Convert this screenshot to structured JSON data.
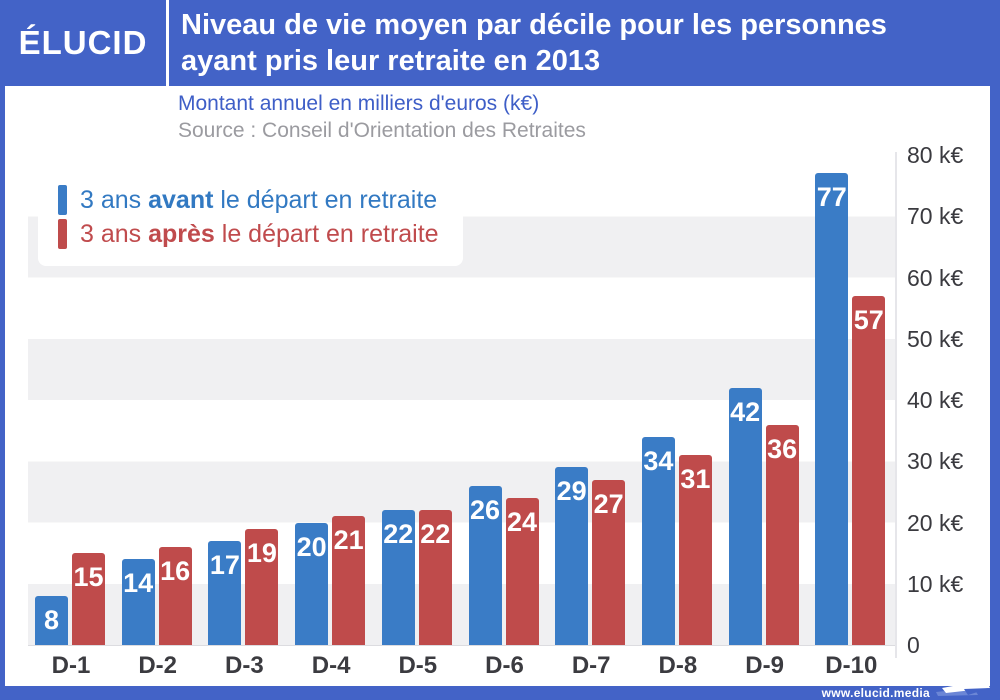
{
  "header": {
    "logo": "ÉLUCID",
    "title_lines": [
      "Niveau de vie moyen par décile pour les personnes",
      "ayant pris leur retraite en 2013"
    ]
  },
  "subtitle": "Montant annuel en milliers d'euros (k€)",
  "source": "Source : Conseil d'Orientation des Retraites",
  "legend": [
    {
      "prefix": "3 ans ",
      "bold": "avant",
      "suffix": " le départ en retraite",
      "marker_color": "#3a7cc6"
    },
    {
      "prefix": "3 ans ",
      "bold": "après",
      "suffix": " le départ en retraite",
      "marker_color": "#bf4b4b"
    }
  ],
  "footer": {
    "website": "www.elucid.media"
  },
  "colors": {
    "frame_blue": "#4363c7",
    "bar_blue": "#3a7cc6",
    "bar_red": "#bf4b4b",
    "stripe_gray": "#f0f0f2",
    "subtitle_blue": "#3e5ec7",
    "source_gray": "#9b9ba0"
  },
  "chart_data": {
    "type": "bar",
    "title": "Niveau de vie moyen par décile pour les personnes ayant pris leur retraite en 2013",
    "subtitle": "Montant annuel en milliers d'euros (k€)",
    "source": "Source : Conseil d'Orientation des Retraites",
    "categories": [
      "D-1",
      "D-2",
      "D-3",
      "D-4",
      "D-5",
      "D-6",
      "D-7",
      "D-8",
      "D-9",
      "D-10"
    ],
    "series": [
      {
        "name": "3 ans avant le départ en retraite",
        "color": "#3a7cc6",
        "values": [
          8,
          14,
          17,
          20,
          22,
          26,
          29,
          34,
          42,
          77
        ]
      },
      {
        "name": "3 ans après le départ en retraite",
        "color": "#bf4b4b",
        "values": [
          15,
          16,
          19,
          21,
          22,
          24,
          27,
          31,
          36,
          57
        ]
      }
    ],
    "unit": "k€",
    "ylim": [
      0,
      80
    ],
    "y_ticks": [
      0,
      10,
      20,
      30,
      40,
      50,
      60,
      70,
      80
    ],
    "y_tick_labels": [
      "0",
      "10 k€",
      "20 k€",
      "30 k€",
      "40 k€",
      "50 k€",
      "60 k€",
      "70 k€",
      "80 k€"
    ],
    "grid": "horizontal-striped-bands",
    "legend_position": "top-left",
    "value_labels": "inside-top-white"
  }
}
